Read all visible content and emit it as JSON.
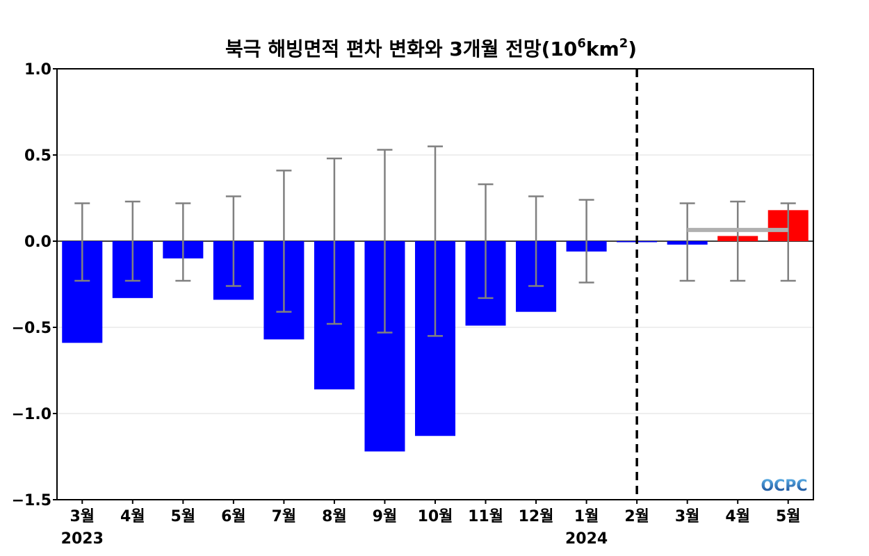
{
  "chart_data": {
    "type": "bar",
    "title_main": "북극 해빙면적 편차 변화와 3개월 전망(10",
    "title_sup1": "6",
    "title_unit": "km",
    "title_sup2": "2",
    "title_end": ")",
    "categories": [
      "3월",
      "4월",
      "5월",
      "6월",
      "7월",
      "8월",
      "9월",
      "10월",
      "11월",
      "12월",
      "1월",
      "2월",
      "3월",
      "4월",
      "5월"
    ],
    "year_labels": [
      {
        "category_index": 0,
        "label": "2023"
      },
      {
        "category_index": 10,
        "label": "2024"
      }
    ],
    "values": [
      -0.59,
      -0.33,
      -0.1,
      -0.34,
      -0.57,
      -0.86,
      -1.22,
      -1.13,
      -0.49,
      -0.41,
      -0.06,
      0.0,
      -0.02,
      0.03,
      0.18
    ],
    "error_bars": [
      [
        -0.23,
        0.22
      ],
      [
        -0.23,
        0.23
      ],
      [
        -0.23,
        0.22
      ],
      [
        -0.26,
        0.26
      ],
      [
        -0.41,
        0.41
      ],
      [
        -0.48,
        0.48
      ],
      [
        -0.53,
        0.53
      ],
      [
        -0.55,
        0.55
      ],
      [
        -0.33,
        0.33
      ],
      [
        -0.26,
        0.26
      ],
      [
        -0.24,
        0.24
      ],
      null,
      [
        -0.23,
        0.22
      ],
      [
        -0.23,
        0.23
      ],
      [
        -0.23,
        0.22
      ]
    ],
    "bar_colors": [
      "#0000ff",
      "#0000ff",
      "#0000ff",
      "#0000ff",
      "#0000ff",
      "#0000ff",
      "#0000ff",
      "#0000ff",
      "#0000ff",
      "#0000ff",
      "#0000ff",
      "#0000ff",
      "#0000ff",
      "#ff0000",
      "#ff0000"
    ],
    "forecast_mean": {
      "value": 0.065,
      "from_index": 12,
      "to_index": 14,
      "color": "#b0b0b0"
    },
    "divider_after_index": 10,
    "ylim": [
      -1.5,
      1.0
    ],
    "yticks": [
      1.0,
      0.5,
      0.0,
      -0.5,
      -1.0,
      -1.5
    ],
    "ytick_labels": [
      "1.0",
      "0.5",
      "0.0",
      "−0.5",
      "−1.0",
      "−1.5"
    ],
    "grid": true,
    "errorbar_color": "#808080"
  },
  "logo": {
    "text": "OCPC"
  }
}
